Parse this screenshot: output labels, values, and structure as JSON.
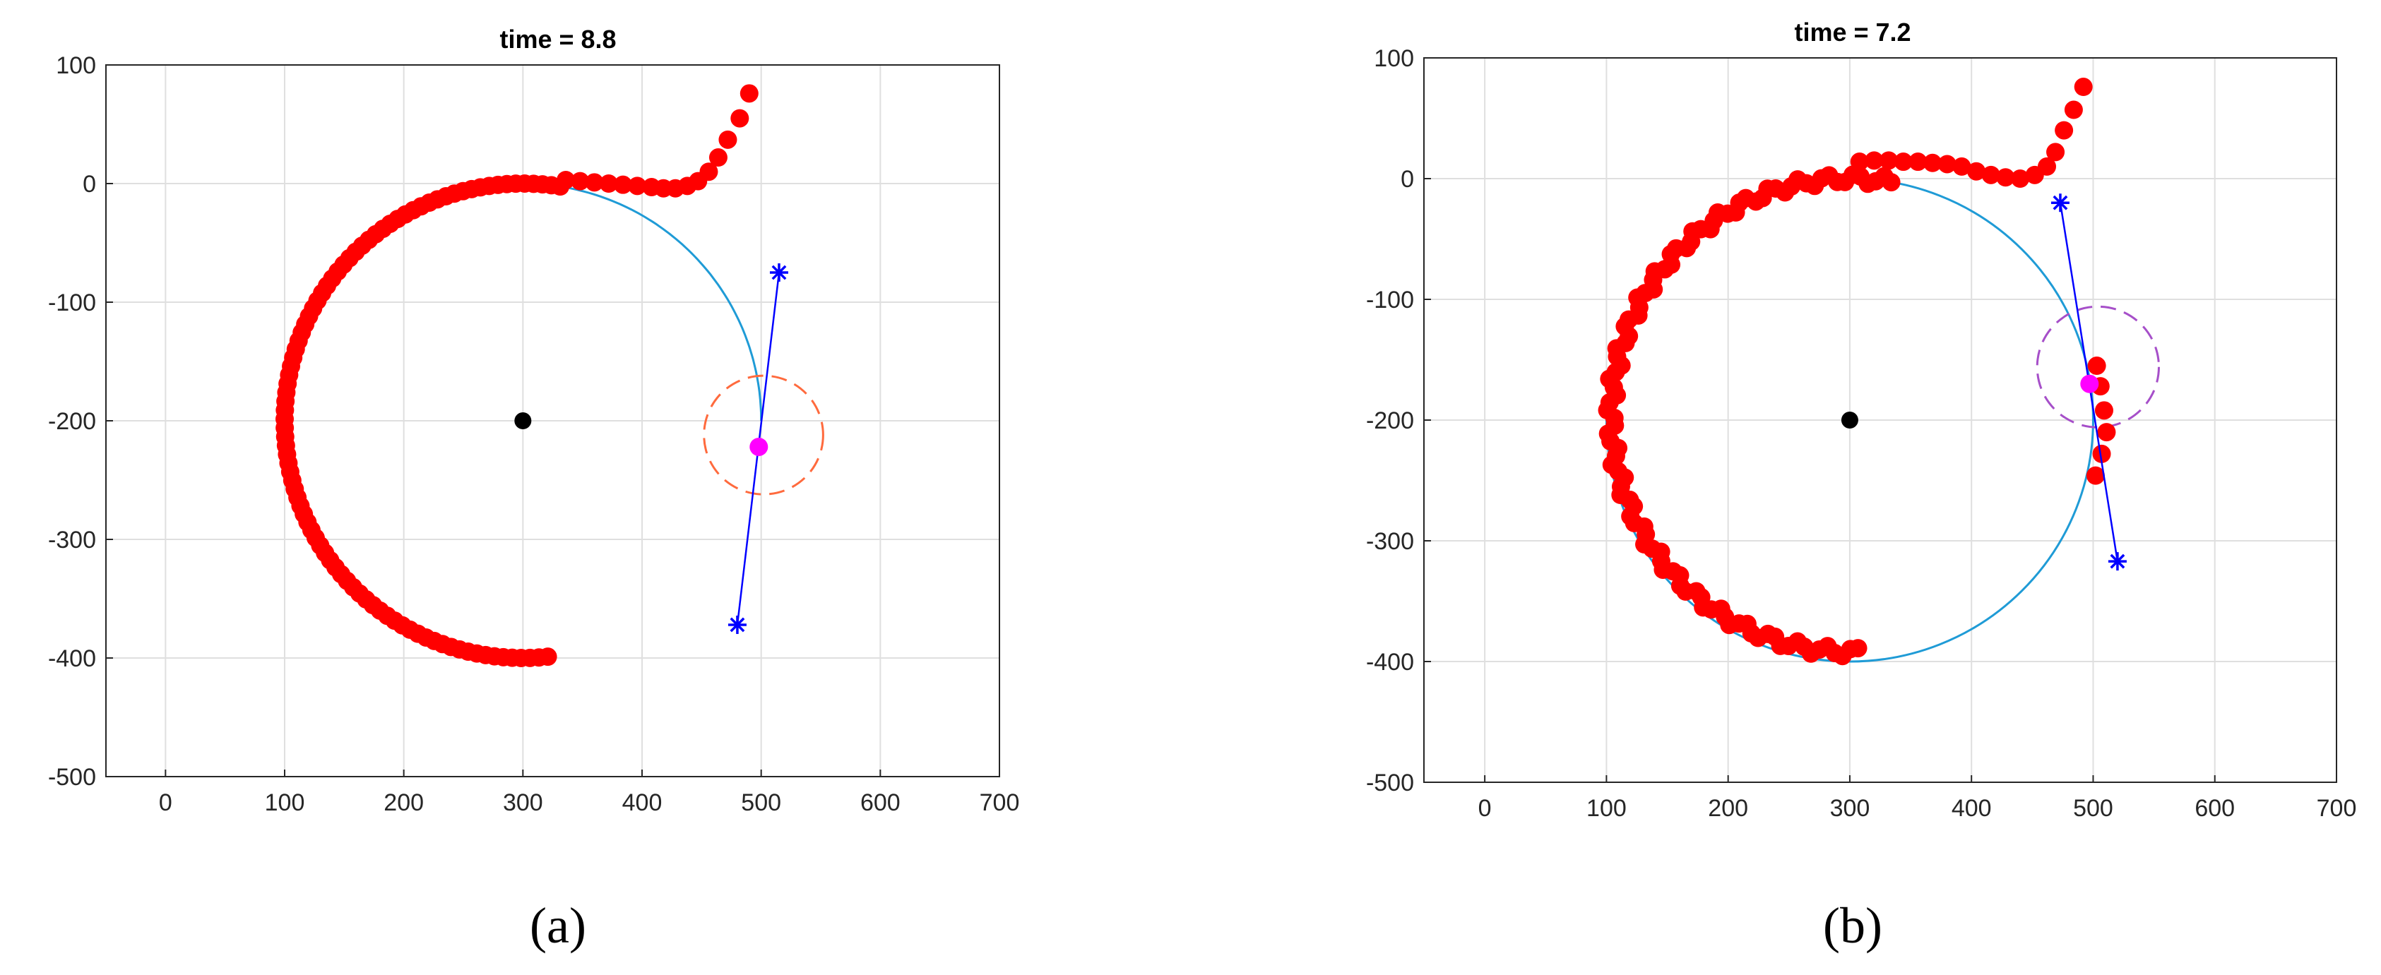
{
  "figure": {
    "panels": [
      {
        "label": "(a)",
        "title": "time = 8.8"
      },
      {
        "label": "(b)",
        "title": "time = 7.2"
      }
    ]
  },
  "chart_data": [
    {
      "type": "scatter",
      "title": "time = 8.8",
      "xlabel": "",
      "ylabel": "",
      "xlim": [
        -50,
        700
      ],
      "ylim": [
        -500,
        100
      ],
      "xticks": [
        0,
        100,
        200,
        300,
        400,
        500,
        600,
        700
      ],
      "yticks": [
        100,
        0,
        -100,
        -200,
        -300,
        -400,
        -500
      ],
      "grid": true,
      "reference_circle": {
        "center": [
          300,
          -200
        ],
        "radius": 200,
        "color": "#1f9bd6",
        "arc_deg_from": 0,
        "arc_deg_to": 90
      },
      "center_point": {
        "x": 300,
        "y": -200,
        "color": "#000000"
      },
      "trajectory": {
        "color": "#ff0000",
        "circle_part": {
          "center": [
            300,
            -200
          ],
          "radius": 200,
          "from_deg": 81,
          "to_deg": -84,
          "count": 92
        },
        "approach_points": [
          [
            490,
            76
          ],
          [
            482,
            55
          ],
          [
            472,
            37
          ],
          [
            464,
            22
          ],
          [
            456,
            10
          ],
          [
            447,
            2
          ],
          [
            438,
            -2
          ],
          [
            428,
            -4
          ],
          [
            418,
            -4
          ],
          [
            408,
            -3
          ],
          [
            396,
            -2
          ],
          [
            384,
            -1
          ],
          [
            372,
            0
          ],
          [
            360,
            1
          ],
          [
            348,
            2
          ],
          [
            336,
            3
          ]
        ]
      },
      "current_point": {
        "x": 498,
        "y": -222,
        "color": "#ff00ff"
      },
      "sensing_circle": {
        "center": [
          502,
          -212
        ],
        "radius": 50,
        "color": "#ff6a3d",
        "style": "dashed"
      },
      "direction_line": {
        "from": [
          515,
          -75
        ],
        "to": [
          480,
          -372
        ],
        "color": "#0000ff",
        "marker": "asterisk"
      }
    },
    {
      "type": "scatter",
      "title": "time = 7.2",
      "xlabel": "",
      "ylabel": "",
      "xlim": [
        -50,
        700
      ],
      "ylim": [
        -500,
        100
      ],
      "xticks": [
        0,
        100,
        200,
        300,
        400,
        500,
        600,
        700
      ],
      "yticks": [
        100,
        0,
        -100,
        -200,
        -300,
        -400,
        -500
      ],
      "grid": true,
      "reference_circle": {
        "center": [
          300,
          -200
        ],
        "radius": 200,
        "color": "#1f9bd6",
        "arc_deg_from": 0,
        "arc_deg_to": 360
      },
      "center_point": {
        "x": 300,
        "y": -200,
        "color": "#000000"
      },
      "trajectory": {
        "color": "#ff0000",
        "circle_part": {
          "center": [
            300,
            -196
          ],
          "radius": 196,
          "from_deg": 80,
          "to_deg": -88,
          "count": 104,
          "jitter": 4
        },
        "approach_points": [
          [
            492,
            76
          ],
          [
            484,
            57
          ],
          [
            476,
            40
          ],
          [
            469,
            22
          ],
          [
            462,
            10
          ],
          [
            452,
            3
          ],
          [
            440,
            0
          ],
          [
            428,
            1
          ],
          [
            416,
            3
          ],
          [
            404,
            6
          ],
          [
            392,
            10
          ],
          [
            380,
            12
          ],
          [
            368,
            13
          ],
          [
            356,
            14
          ],
          [
            344,
            14
          ],
          [
            332,
            15
          ],
          [
            320,
            15
          ],
          [
            308,
            14
          ]
        ],
        "tail_points": [
          [
            503,
            -155
          ],
          [
            506,
            -172
          ],
          [
            509,
            -192
          ],
          [
            511,
            -210
          ],
          [
            507,
            -228
          ],
          [
            502,
            -246
          ]
        ]
      },
      "current_point": {
        "x": 497,
        "y": -170,
        "color": "#ff00ff"
      },
      "sensing_circle": {
        "center": [
          504,
          -156
        ],
        "radius": 50,
        "color": "#a64fc9",
        "style": "dashed"
      },
      "direction_line": {
        "from": [
          473,
          -20
        ],
        "to": [
          520,
          -317
        ],
        "color": "#0000ff",
        "marker": "asterisk"
      }
    }
  ]
}
